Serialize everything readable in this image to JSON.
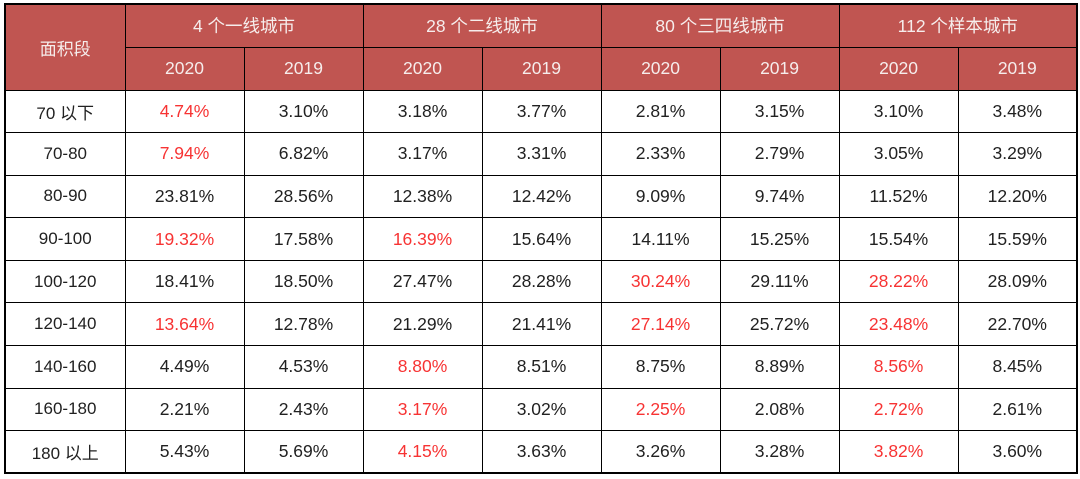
{
  "chart_data": {
    "type": "table",
    "corner_label": "面积段",
    "column_groups": [
      {
        "label": "4 个一线城市",
        "years": [
          "2020",
          "2019"
        ]
      },
      {
        "label": "28 个二线城市",
        "years": [
          "2020",
          "2019"
        ]
      },
      {
        "label": "80 个三四线城市",
        "years": [
          "2020",
          "2019"
        ]
      },
      {
        "label": "112 个样本城市",
        "years": [
          "2020",
          "2019"
        ]
      }
    ],
    "rows": [
      {
        "segment": "70 以下",
        "values": [
          "4.74%",
          "3.10%",
          "3.18%",
          "3.77%",
          "2.81%",
          "3.15%",
          "3.10%",
          "3.48%"
        ],
        "highlighted_value_indices": [
          0
        ]
      },
      {
        "segment": "70-80",
        "values": [
          "7.94%",
          "6.82%",
          "3.17%",
          "3.31%",
          "2.33%",
          "2.79%",
          "3.05%",
          "3.29%"
        ],
        "highlighted_value_indices": [
          0
        ]
      },
      {
        "segment": "80-90",
        "values": [
          "23.81%",
          "28.56%",
          "12.38%",
          "12.42%",
          "9.09%",
          "9.74%",
          "11.52%",
          "12.20%"
        ],
        "highlighted_value_indices": []
      },
      {
        "segment": "90-100",
        "values": [
          "19.32%",
          "17.58%",
          "16.39%",
          "15.64%",
          "14.11%",
          "15.25%",
          "15.54%",
          "15.59%"
        ],
        "highlighted_value_indices": [
          0,
          2
        ]
      },
      {
        "segment": "100-120",
        "values": [
          "18.41%",
          "18.50%",
          "27.47%",
          "28.28%",
          "30.24%",
          "29.11%",
          "28.22%",
          "28.09%"
        ],
        "highlighted_value_indices": [
          4,
          6
        ]
      },
      {
        "segment": "120-140",
        "values": [
          "13.64%",
          "12.78%",
          "21.29%",
          "21.41%",
          "27.14%",
          "25.72%",
          "23.48%",
          "22.70%"
        ],
        "highlighted_value_indices": [
          0,
          4,
          6
        ]
      },
      {
        "segment": "140-160",
        "values": [
          "4.49%",
          "4.53%",
          "8.80%",
          "8.51%",
          "8.75%",
          "8.89%",
          "8.56%",
          "8.45%"
        ],
        "highlighted_value_indices": [
          2,
          6
        ]
      },
      {
        "segment": "160-180",
        "values": [
          "2.21%",
          "2.43%",
          "3.17%",
          "3.02%",
          "2.25%",
          "2.08%",
          "2.72%",
          "2.61%"
        ],
        "highlighted_value_indices": [
          2,
          4,
          6
        ]
      },
      {
        "segment": "180 以上",
        "values": [
          "5.43%",
          "5.69%",
          "4.15%",
          "3.63%",
          "3.26%",
          "3.28%",
          "3.82%",
          "3.60%"
        ],
        "highlighted_value_indices": [
          2,
          6
        ]
      }
    ]
  },
  "colors": {
    "background": "#ffffff",
    "header_bg": "#c05551",
    "header_text": "#f6edec",
    "body_text": "#212121",
    "highlight_text": "#f73333",
    "border": "#000000"
  }
}
